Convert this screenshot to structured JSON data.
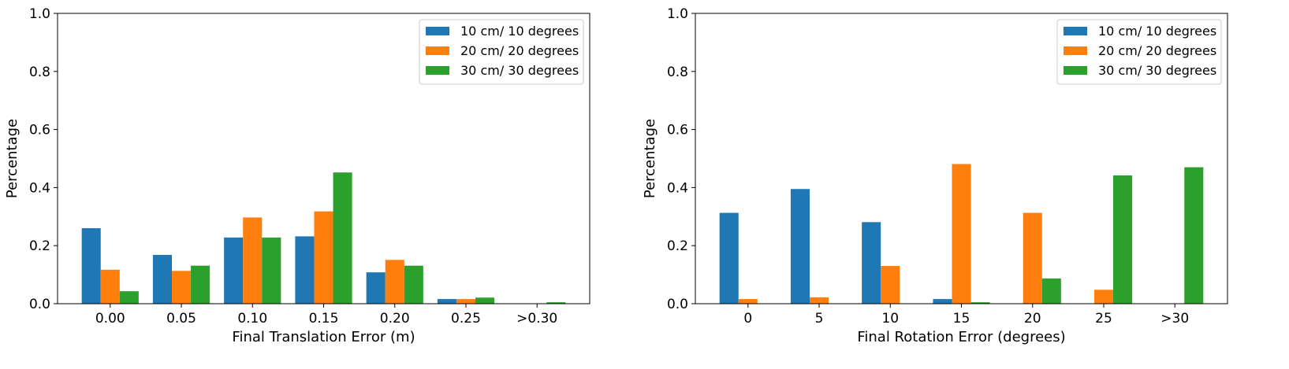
{
  "chart_data": [
    {
      "type": "bar",
      "xlabel": "Final Translation Error (m)",
      "ylabel": "Percentage",
      "ylim": [
        0,
        1.0
      ],
      "yticks": [
        "0.0",
        "0.2",
        "0.4",
        "0.6",
        "0.8",
        "1.0"
      ],
      "grid": false,
      "legend_position": "top-right",
      "categories": [
        "0.00",
        "0.05",
        "0.10",
        "0.15",
        "0.20",
        "0.25",
        ">0.30"
      ],
      "series": [
        {
          "name": "10 cm/ 10 degrees",
          "color": "#1f77b4",
          "values": [
            0.26,
            0.168,
            0.228,
            0.232,
            0.108,
            0.016,
            0.0
          ]
        },
        {
          "name": "20 cm/ 20 degrees",
          "color": "#ff7f0e",
          "values": [
            0.117,
            0.113,
            0.297,
            0.318,
            0.151,
            0.016,
            0.0
          ]
        },
        {
          "name": "30 cm/ 30 degrees",
          "color": "#2ca02c",
          "values": [
            0.043,
            0.131,
            0.228,
            0.452,
            0.131,
            0.021,
            0.005
          ]
        }
      ]
    },
    {
      "type": "bar",
      "xlabel": "Final Rotation Error (degrees)",
      "ylabel": "Percentage",
      "ylim": [
        0,
        1.0
      ],
      "yticks": [
        "0.0",
        "0.2",
        "0.4",
        "0.6",
        "0.8",
        "1.0"
      ],
      "grid": false,
      "legend_position": "top-right",
      "categories": [
        "0",
        "5",
        "10",
        "15",
        "20",
        "25",
        ">30"
      ],
      "series": [
        {
          "name": "10 cm/ 10 degrees",
          "color": "#1f77b4",
          "values": [
            0.313,
            0.395,
            0.281,
            0.016,
            0.0,
            0.0,
            0.0
          ]
        },
        {
          "name": "20 cm/ 20 degrees",
          "color": "#ff7f0e",
          "values": [
            0.016,
            0.022,
            0.13,
            0.481,
            0.313,
            0.048,
            0.0
          ]
        },
        {
          "name": "30 cm/ 30 degrees",
          "color": "#2ca02c",
          "values": [
            0.0,
            0.0,
            0.0,
            0.005,
            0.087,
            0.442,
            0.47
          ]
        }
      ]
    }
  ]
}
